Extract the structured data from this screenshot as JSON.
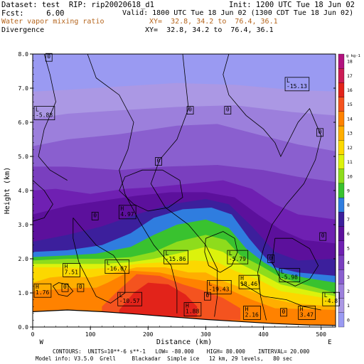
{
  "header": {
    "left1": "Dataset: test  RIP: rip20020618_d1",
    "right1": "Init: 1200 UTC Tue 18 Jun 02",
    "left2": "Fcst:     6.00",
    "right2": "Valid: 1800 UTC Tue 18 Jun 02 (1300 CDT Tue 18 Jun 02)",
    "var1_name": "Water vapor mixing ratio",
    "var1_xy": "XY=  32.8, 34.2 to  76.4, 36.1",
    "var2_name": "Divergence",
    "var2_xy": "XY=  32.8, 34.2 to  76.4, 36.1"
  },
  "footer": {
    "line1": "CONTOURS:  UNITS=10**-6 s**-1   LOW= -80.000    HIGH= 80.000    INTERVAL= 20.000",
    "line2": "Model info: V3.5.0  Grell     Blackadar  Simple ice   12 km, 29 levels,   80 sec"
  },
  "colors": {
    "c0": "#9a9af2",
    "c1": "#ab98e4",
    "c2": "#9c7fdc",
    "c3": "#8a5fcf",
    "c4": "#7a3fbf",
    "c5": "#6f20b2",
    "c6": "#5c109c",
    "c7": "#3c1f9c",
    "c8": "#2f7ddf",
    "c9": "#39c22f",
    "c10": "#8edc1c",
    "c11": "#dcf20c",
    "c12": "#fcd800",
    "c13": "#ffae00",
    "c14": "#ff8200",
    "c15": "#f4531f",
    "c16": "#e2231a",
    "c17": "#cb1c55",
    "c18": "#b2127e"
  },
  "chart_data": {
    "type": "heatmap",
    "title": "Water vapor mixing ratio",
    "xlabel": "Distance (km)",
    "ylabel": "Height (km)",
    "x_range": [
      0,
      525
    ],
    "y_range": [
      0,
      8
    ],
    "x_ticks": [
      "0",
      "100",
      "200",
      "300",
      "400",
      "500"
    ],
    "y_ticks": [
      "0.0",
      "1.0",
      "2.0",
      "3.0",
      "4.0",
      "5.0",
      "6.0",
      "7.0",
      "8.0"
    ],
    "endpoint_left": "W",
    "endpoint_right": "E",
    "colorbar": {
      "unit_label": "g kg-1",
      "levels": [
        "0",
        "1",
        "2",
        "3",
        "4",
        "5",
        "6",
        "7",
        "8",
        "9",
        "10",
        "11",
        "12",
        "13",
        "14",
        "15",
        "16",
        "17",
        "18"
      ]
    },
    "contour_labels": [
      {
        "text": "0",
        "x": 25,
        "y": 7.85
      },
      {
        "text": "L\n-15.13",
        "x": 440,
        "y": 7.15
      },
      {
        "text": "0",
        "x": 270,
        "y": 6.3
      },
      {
        "text": "0",
        "x": 335,
        "y": 6.3
      },
      {
        "text": "L\n-5.88",
        "x": 5,
        "y": 6.3
      },
      {
        "text": "0",
        "x": 495,
        "y": 5.65
      },
      {
        "text": "0",
        "x": 215,
        "y": 4.8
      },
      {
        "text": "H\n4.97",
        "x": 152,
        "y": 3.4
      },
      {
        "text": "0",
        "x": 105,
        "y": 3.2
      },
      {
        "text": "0",
        "x": 500,
        "y": 2.6
      },
      {
        "text": "L\n-15.86",
        "x": 230,
        "y": 2.08
      },
      {
        "text": "L\n-5.79",
        "x": 340,
        "y": 2.08
      },
      {
        "text": "0",
        "x": 410,
        "y": 1.95
      },
      {
        "text": "L\n-16.07",
        "x": 128,
        "y": 1.8
      },
      {
        "text": "H\n7.51",
        "x": 55,
        "y": 1.7
      },
      {
        "text": "L\n-5.98",
        "x": 430,
        "y": 1.55
      },
      {
        "text": "H\n18.46",
        "x": 360,
        "y": 1.35
      },
      {
        "text": "L\n-19.43",
        "x": 305,
        "y": 1.2
      },
      {
        "text": "0",
        "x": 53,
        "y": 1.1
      },
      {
        "text": "0",
        "x": 80,
        "y": 1.1
      },
      {
        "text": "H\n1.76",
        "x": 5,
        "y": 1.1
      },
      {
        "text": "L\n-10.57",
        "x": 150,
        "y": 0.85
      },
      {
        "text": "0",
        "x": 300,
        "y": 0.85
      },
      {
        "text": "L\n-4.8",
        "x": 505,
        "y": 0.85
      },
      {
        "text": "H\n1.88",
        "x": 265,
        "y": 0.55
      },
      {
        "text": "H\n2.16",
        "x": 368,
        "y": 0.45
      },
      {
        "text": "0",
        "x": 432,
        "y": 0.38
      },
      {
        "text": "H\n3.47",
        "x": 463,
        "y": 0.45
      }
    ]
  }
}
